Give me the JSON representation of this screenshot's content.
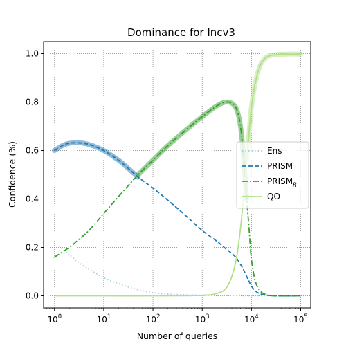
{
  "chart_data": {
    "type": "line",
    "title": "Dominance for Incv3",
    "xlabel": "Number of queries",
    "ylabel": "Confidence (%)",
    "x_scale": "log",
    "xlim": [
      0.6,
      160000
    ],
    "ylim": [
      -0.05,
      1.05
    ],
    "x_ticks": [
      {
        "value": 1,
        "base": "10",
        "exp": "0"
      },
      {
        "value": 10,
        "base": "10",
        "exp": "1"
      },
      {
        "value": 100,
        "base": "10",
        "exp": "2"
      },
      {
        "value": 1000,
        "base": "10",
        "exp": "3"
      },
      {
        "value": 10000,
        "base": "10",
        "exp": "4"
      },
      {
        "value": 100000,
        "base": "10",
        "exp": "5"
      }
    ],
    "y_ticks": [
      "0.0",
      "0.2",
      "0.4",
      "0.6",
      "0.8",
      "1.0"
    ],
    "grid": true,
    "legend_position": "center-right",
    "series": [
      {
        "name": "Ens",
        "style": "dotted",
        "color": "#a6cee3",
        "x": [
          1,
          1.5,
          2,
          3,
          5,
          10,
          20,
          50,
          100,
          200,
          500,
          1000,
          2000,
          5000,
          10000,
          100000
        ],
        "y": [
          0.225,
          0.19,
          0.17,
          0.14,
          0.11,
          0.075,
          0.05,
          0.025,
          0.013,
          0.007,
          0.004,
          0.002,
          0.001,
          0.001,
          0.0,
          0.0
        ]
      },
      {
        "name": "PRISM",
        "style": "dashed",
        "color": "#1f78b4",
        "highlight_until": 50,
        "x": [
          1,
          1.5,
          2,
          3,
          5,
          10,
          20,
          30,
          50,
          100,
          200,
          500,
          1000,
          2000,
          3000,
          4000,
          5000,
          6000,
          7000,
          8000,
          9000,
          10000,
          12000,
          15000,
          20000,
          30000,
          100000
        ],
        "y": [
          0.6,
          0.622,
          0.63,
          0.632,
          0.625,
          0.6,
          0.56,
          0.53,
          0.49,
          0.445,
          0.395,
          0.325,
          0.27,
          0.225,
          0.195,
          0.175,
          0.155,
          0.13,
          0.105,
          0.08,
          0.058,
          0.04,
          0.02,
          0.008,
          0.003,
          0.0,
          0.0
        ]
      },
      {
        "name": "PRISM",
        "name_subscript": "R",
        "style": "dashdot",
        "color": "#33a02c",
        "highlight_from": 50,
        "highlight_until": 8000,
        "x": [
          1,
          2,
          3,
          5,
          10,
          20,
          50,
          100,
          200,
          500,
          1000,
          2000,
          3000,
          4000,
          5000,
          6000,
          7000,
          8000,
          9000,
          10000,
          12000,
          15000,
          20000,
          30000,
          100000
        ],
        "y": [
          0.16,
          0.2,
          0.23,
          0.27,
          0.34,
          0.41,
          0.5,
          0.56,
          0.62,
          0.69,
          0.74,
          0.785,
          0.8,
          0.795,
          0.77,
          0.7,
          0.56,
          0.4,
          0.27,
          0.15,
          0.06,
          0.02,
          0.005,
          0.0,
          0.0
        ]
      },
      {
        "name": "QO",
        "style": "solid",
        "color": "#b2df8a",
        "highlight_from": 8000,
        "x": [
          1,
          10,
          100,
          1000,
          2000,
          3000,
          4000,
          5000,
          6000,
          7000,
          8000,
          9000,
          10000,
          12000,
          15000,
          20000,
          30000,
          50000,
          100000
        ],
        "y": [
          0.0,
          0.0,
          0.0,
          0.002,
          0.01,
          0.03,
          0.08,
          0.16,
          0.28,
          0.42,
          0.56,
          0.68,
          0.78,
          0.88,
          0.95,
          0.985,
          0.995,
          0.998,
          0.998
        ]
      }
    ]
  }
}
